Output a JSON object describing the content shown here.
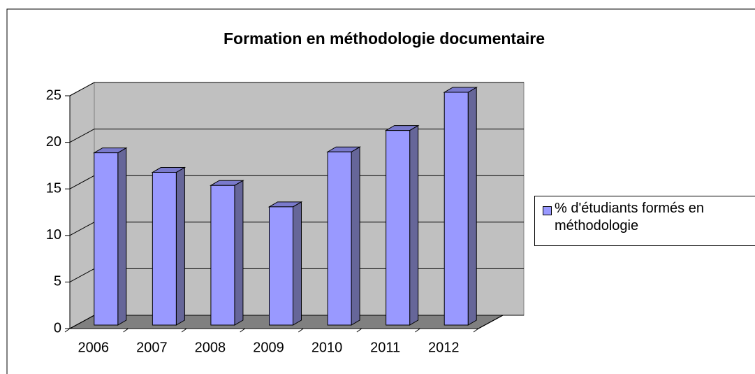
{
  "chart_data": {
    "type": "bar3d",
    "title": "Formation en méthodologie documentaire",
    "categories": [
      "2006",
      "2007",
      "2008",
      "2009",
      "2010",
      "2011",
      "2012"
    ],
    "series": [
      {
        "name": "% d'étudiants formés en méthodologie",
        "color": "#9999ff",
        "values": [
          18.5,
          16.4,
          15,
          12.7,
          18.6,
          20.9,
          25
        ]
      }
    ],
    "ylim": [
      0,
      25
    ],
    "yticks": [
      0,
      5,
      10,
      15,
      20,
      25
    ],
    "grid": true,
    "legend": "right"
  }
}
